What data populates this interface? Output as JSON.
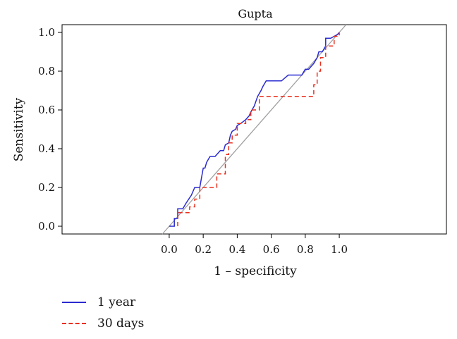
{
  "chart_data": {
    "type": "line",
    "title": "Gupta",
    "xlabel": "1 – specificity",
    "ylabel": "Sensitivity",
    "xlim": [
      -0.63,
      1.63
    ],
    "ylim": [
      -0.04,
      1.04
    ],
    "x_ticks": [
      "0.0",
      "0.2",
      "0.4",
      "0.6",
      "0.8",
      "1.0"
    ],
    "y_ticks": [
      "0.0",
      "0.2",
      "0.4",
      "0.6",
      "0.8",
      "1.0"
    ],
    "grid": false,
    "legend_position": "bottom-left",
    "reference_line": {
      "x": [
        -0.04,
        1.04
      ],
      "y": [
        -0.04,
        1.04
      ],
      "color": "#a0a0a0"
    },
    "series": [
      {
        "name": "1 year",
        "color": "#2b2bd1",
        "dash": "solid",
        "x": [
          0.0,
          0.03,
          0.03,
          0.05,
          0.05,
          0.08,
          0.1,
          0.13,
          0.15,
          0.18,
          0.19,
          0.2,
          0.21,
          0.22,
          0.24,
          0.27,
          0.3,
          0.32,
          0.33,
          0.35,
          0.36,
          0.37,
          0.39,
          0.4,
          0.42,
          0.45,
          0.47,
          0.48,
          0.5,
          0.52,
          0.54,
          0.55,
          0.57,
          0.62,
          0.66,
          0.7,
          0.75,
          0.78,
          0.8,
          0.82,
          0.85,
          0.87,
          0.88,
          0.9,
          0.92,
          0.92,
          0.95,
          0.99,
          1.0
        ],
        "y": [
          0.0,
          0.0,
          0.04,
          0.04,
          0.09,
          0.09,
          0.12,
          0.16,
          0.2,
          0.2,
          0.25,
          0.3,
          0.3,
          0.33,
          0.36,
          0.36,
          0.39,
          0.39,
          0.42,
          0.43,
          0.47,
          0.49,
          0.5,
          0.52,
          0.53,
          0.55,
          0.57,
          0.59,
          0.62,
          0.67,
          0.7,
          0.72,
          0.75,
          0.75,
          0.75,
          0.78,
          0.78,
          0.78,
          0.81,
          0.81,
          0.84,
          0.87,
          0.9,
          0.9,
          0.93,
          0.97,
          0.97,
          0.99,
          1.0
        ]
      },
      {
        "name": "30 days",
        "color": "#e8301e",
        "dash": "dashed",
        "x": [
          0.05,
          0.05,
          0.07,
          0.07,
          0.12,
          0.12,
          0.15,
          0.15,
          0.18,
          0.18,
          0.28,
          0.28,
          0.33,
          0.33,
          0.35,
          0.35,
          0.37,
          0.37,
          0.4,
          0.4,
          0.45,
          0.45,
          0.48,
          0.48,
          0.53,
          0.53,
          0.6,
          0.7,
          0.85,
          0.85,
          0.87,
          0.87,
          0.89,
          0.89,
          0.92,
          0.92,
          0.97,
          0.97,
          1.0,
          1.0
        ],
        "y": [
          0.0,
          0.07,
          0.07,
          0.07,
          0.07,
          0.1,
          0.1,
          0.14,
          0.14,
          0.2,
          0.2,
          0.27,
          0.27,
          0.37,
          0.37,
          0.43,
          0.43,
          0.47,
          0.47,
          0.53,
          0.53,
          0.55,
          0.55,
          0.6,
          0.6,
          0.67,
          0.67,
          0.67,
          0.67,
          0.73,
          0.73,
          0.8,
          0.8,
          0.87,
          0.87,
          0.93,
          0.93,
          0.98,
          0.98,
          1.0
        ]
      }
    ]
  }
}
